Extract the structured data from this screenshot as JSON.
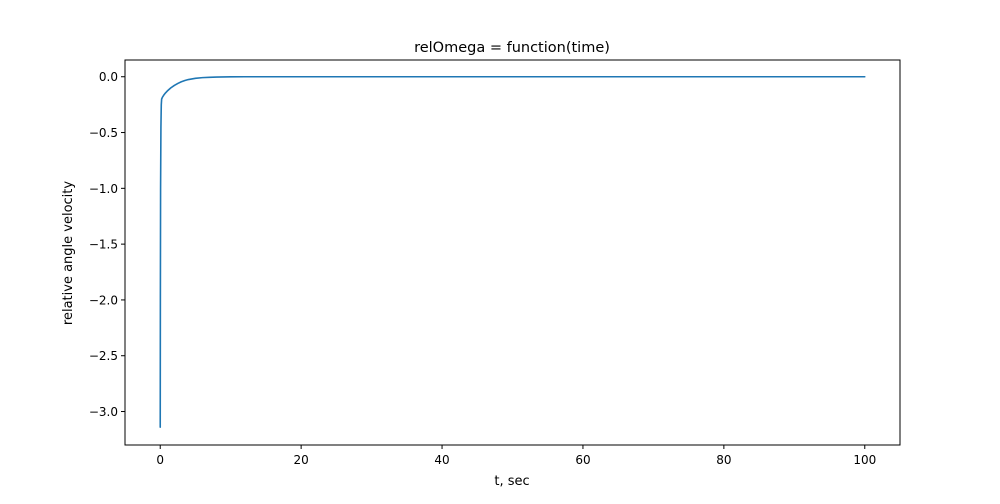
{
  "chart_data": {
    "type": "line",
    "title": "relOmega = function(time)",
    "xlabel": "t, sec",
    "ylabel": "relative angle velocity",
    "xlim": [
      -5,
      105
    ],
    "ylim": [
      -3.3,
      0.15
    ],
    "xticks": [
      0,
      20,
      40,
      60,
      80,
      100
    ],
    "xtick_labels": [
      "0",
      "20",
      "40",
      "60",
      "80",
      "100"
    ],
    "yticks": [
      0.0,
      -0.5,
      -1.0,
      -1.5,
      -2.0,
      -2.5,
      -3.0
    ],
    "ytick_labels": [
      "0.0",
      "−0.5",
      "−1.0",
      "−1.5",
      "−2.0",
      "−2.5",
      "−3.0"
    ],
    "grid": false,
    "legend": "none",
    "series": [
      {
        "color": "#1f77b4",
        "x": [
          0.0,
          0.02,
          0.05,
          0.1,
          0.15,
          0.2,
          0.3,
          0.5,
          0.75,
          1.0,
          1.5,
          2.0,
          2.5,
          3.0,
          3.5,
          4.0,
          5.0,
          6.0,
          7.0,
          8.0,
          10.0,
          12.0,
          15.0,
          20.0,
          30.0,
          40.0,
          50.0,
          60.0,
          70.0,
          80.0,
          90.0,
          100.0
        ],
        "y": [
          -3.14,
          -2.0,
          -1.0,
          -0.45,
          -0.25,
          -0.2,
          -0.185,
          -0.165,
          -0.145,
          -0.128,
          -0.1,
          -0.078,
          -0.06,
          -0.045,
          -0.034,
          -0.025,
          -0.014,
          -0.008,
          -0.005,
          -0.003,
          -0.001,
          0.0,
          0.0,
          0.0,
          0.0,
          0.0,
          0.0,
          0.0,
          0.0,
          0.0,
          0.0,
          0.0
        ]
      }
    ]
  }
}
